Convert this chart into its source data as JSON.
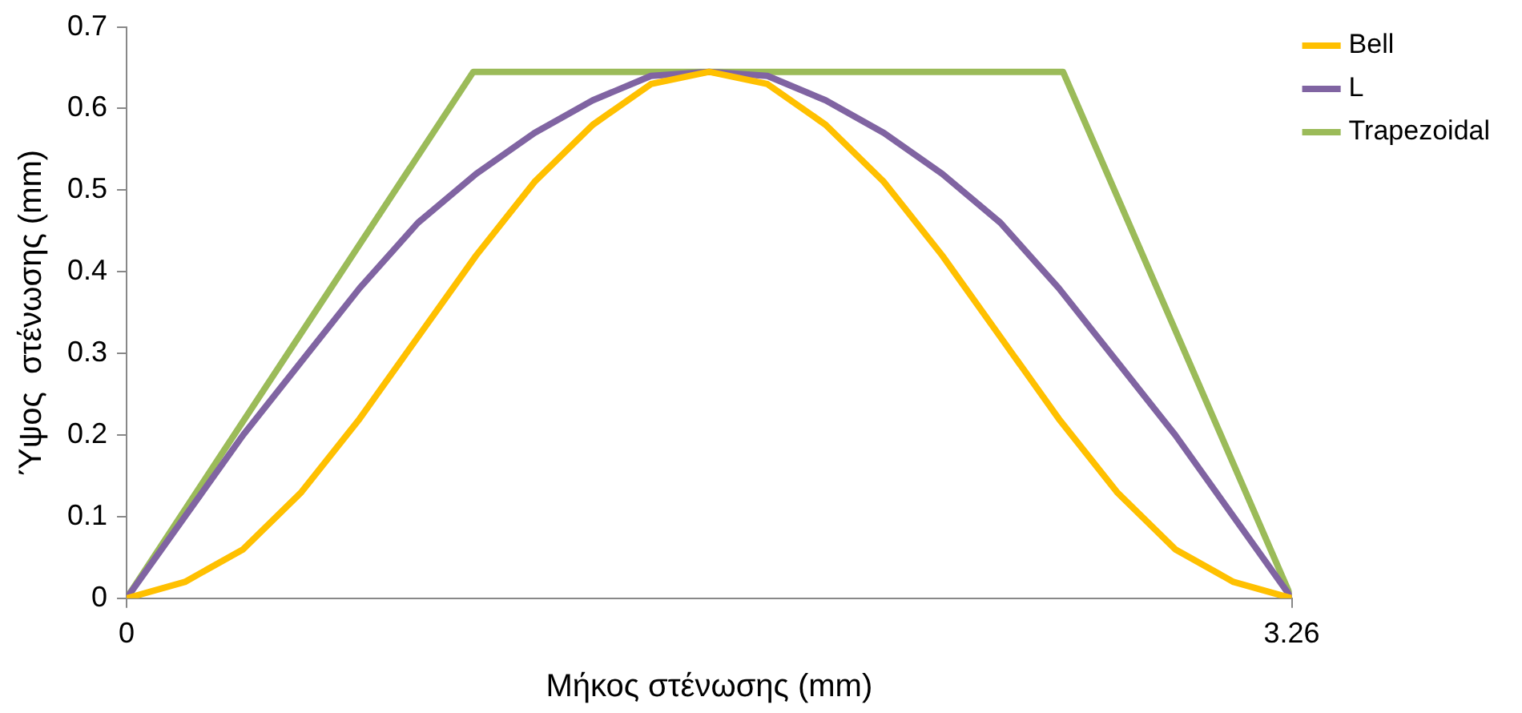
{
  "chart_data": {
    "type": "line",
    "xlabel": "Μήκος στένωσης (mm)",
    "ylabel": "Ύψος  στένωσης (mm)",
    "xlim": [
      0,
      3.26
    ],
    "xticks": [
      0,
      3.26
    ],
    "ylim": [
      0,
      0.7
    ],
    "yticks": [
      0,
      0.1,
      0.2,
      0.3,
      0.4,
      0.5,
      0.6,
      0.7
    ],
    "grid": false,
    "legend": "top right",
    "marker": "none",
    "line_style": "solid",
    "series": [
      {
        "name": "Bell",
        "color": "#ffc000",
        "x": [
          0,
          0.163,
          0.326,
          0.489,
          0.652,
          0.815,
          0.978,
          1.141,
          1.304,
          1.467,
          1.63,
          1.793,
          1.956,
          2.119,
          2.282,
          2.445,
          2.608,
          2.771,
          2.934,
          3.097,
          3.26
        ],
        "values": [
          0,
          0.02,
          0.06,
          0.13,
          0.22,
          0.32,
          0.42,
          0.51,
          0.58,
          0.63,
          0.645,
          0.63,
          0.58,
          0.51,
          0.42,
          0.32,
          0.22,
          0.13,
          0.06,
          0.02,
          0
        ]
      },
      {
        "name": "L",
        "color": "#8064a2",
        "x": [
          0,
          0.163,
          0.326,
          0.489,
          0.652,
          0.815,
          0.978,
          1.141,
          1.304,
          1.467,
          1.63,
          1.793,
          1.956,
          2.119,
          2.282,
          2.445,
          2.608,
          2.771,
          2.934,
          3.097,
          3.26
        ],
        "values": [
          0,
          0.1,
          0.2,
          0.29,
          0.38,
          0.46,
          0.52,
          0.57,
          0.61,
          0.64,
          0.645,
          0.64,
          0.61,
          0.57,
          0.52,
          0.46,
          0.38,
          0.29,
          0.2,
          0.1,
          0
        ]
      },
      {
        "name": "Trapezoidal",
        "color": "#9bbb59",
        "x": [
          0,
          0.97,
          2.62,
          3.26
        ],
        "values": [
          0,
          0.645,
          0.645,
          0
        ]
      }
    ]
  }
}
